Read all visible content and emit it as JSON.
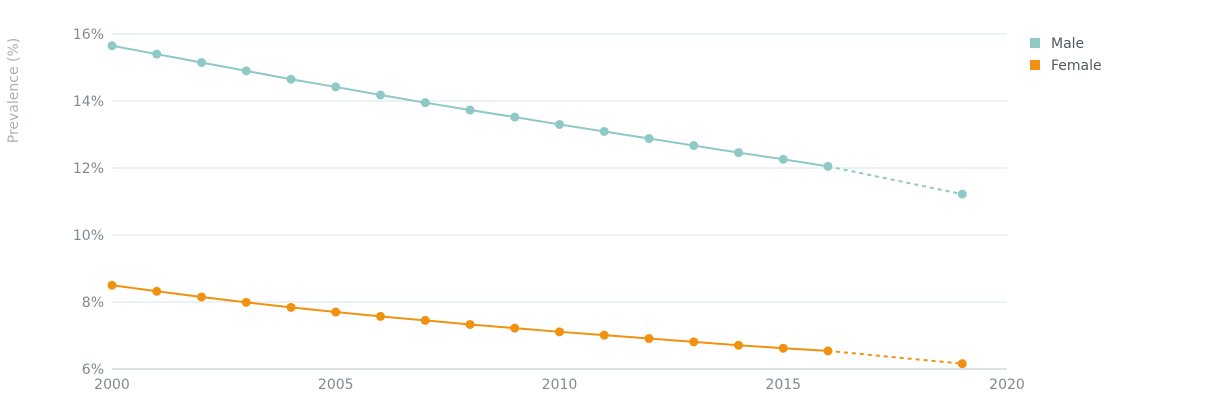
{
  "chart_data": {
    "type": "line",
    "ylabel": "Prevalence (%)",
    "xlim": [
      2000,
      2020
    ],
    "ylim": [
      6,
      16
    ],
    "x_ticks": [
      "2000",
      "2005",
      "2010",
      "2015",
      "2020"
    ],
    "y_ticks": [
      "16%",
      "14%",
      "12%",
      "10%",
      "8%",
      "6%"
    ],
    "grid": "horizontal",
    "legend_position": "top-right",
    "x": [
      2000,
      2001,
      2002,
      2003,
      2004,
      2005,
      2006,
      2007,
      2008,
      2009,
      2010,
      2011,
      2012,
      2013,
      2014,
      2015,
      2016,
      2019
    ],
    "projected_from": 2016,
    "series": [
      {
        "name": "Male",
        "color": "#8ec9c5",
        "values": [
          15.65,
          15.4,
          15.15,
          14.9,
          14.65,
          14.42,
          14.18,
          13.95,
          13.73,
          13.52,
          13.3,
          13.09,
          12.88,
          12.67,
          12.46,
          12.26,
          12.05,
          11.22
        ]
      },
      {
        "name": "Female",
        "color": "#f0920f",
        "values": [
          8.5,
          8.32,
          8.15,
          7.99,
          7.84,
          7.7,
          7.57,
          7.45,
          7.33,
          7.22,
          7.11,
          7.01,
          6.91,
          6.81,
          6.71,
          6.62,
          6.54,
          6.16
        ]
      }
    ]
  }
}
